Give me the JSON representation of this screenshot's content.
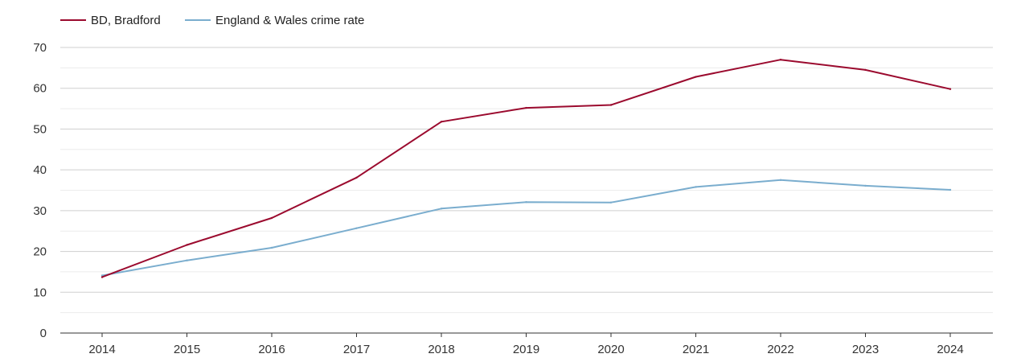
{
  "chart_data": {
    "type": "line",
    "title": "",
    "xlabel": "",
    "ylabel": "",
    "x": [
      "2014",
      "2015",
      "2016",
      "2017",
      "2018",
      "2019",
      "2020",
      "2021",
      "2022",
      "2023",
      "2024"
    ],
    "ylim": [
      0,
      70
    ],
    "yticks": [
      "0",
      "10",
      "20",
      "30",
      "40",
      "50",
      "60",
      "70"
    ],
    "grid": true,
    "legend": "top-left",
    "series": [
      {
        "name": "BD, Bradford",
        "color": "#9b0a2e",
        "values": [
          13.7,
          21.6,
          28.2,
          38.1,
          51.8,
          55.2,
          55.9,
          62.8,
          67.0,
          64.5,
          59.8
        ]
      },
      {
        "name": "England & Wales crime rate",
        "color": "#7aadce",
        "values": [
          14.1,
          17.8,
          20.9,
          25.7,
          30.5,
          32.1,
          32.0,
          35.8,
          37.5,
          36.1,
          35.1
        ]
      }
    ]
  }
}
